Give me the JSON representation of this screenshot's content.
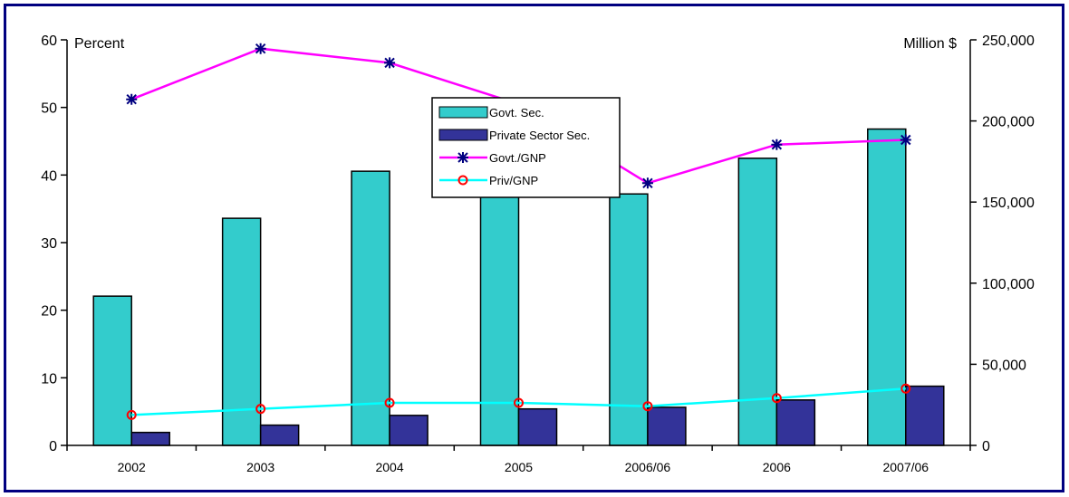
{
  "chart_data": {
    "type": "bar",
    "categories": [
      "2002",
      "2003",
      "2004",
      "2005",
      "2006/06",
      "2006",
      "2007/06"
    ],
    "series": [
      {
        "name": "Govt. Sec.",
        "kind": "bar",
        "axis": "right",
        "color": "#33CCCC",
        "values": [
          92000,
          140000,
          169000,
          156000,
          155000,
          177000,
          195000
        ]
      },
      {
        "name": "Private Sector Sec.",
        "kind": "bar",
        "axis": "right",
        "color": "#333399",
        "values": [
          8000,
          12500,
          18500,
          22500,
          23500,
          28000,
          36500
        ]
      },
      {
        "name": "Govt./GNP",
        "kind": "line",
        "axis": "left",
        "color": "#FF00FF",
        "marker": "star",
        "marker_color": "#000080",
        "values": [
          51.2,
          58.7,
          56.6,
          50.5,
          38.8,
          44.5,
          45.2
        ]
      },
      {
        "name": "Priv/GNP",
        "kind": "line",
        "axis": "left",
        "color": "#00FFFF",
        "marker": "circle",
        "marker_color": "#FF0000",
        "values": [
          4.5,
          5.4,
          6.3,
          6.3,
          5.8,
          7.0,
          8.4
        ]
      }
    ],
    "left_axis": {
      "label": "Percent",
      "min": 0,
      "max": 60,
      "ticks": [
        "0",
        "10",
        "20",
        "30",
        "40",
        "50",
        "60"
      ]
    },
    "right_axis": {
      "label": "Million $",
      "min": 0,
      "max": 250000,
      "ticks": [
        "0",
        "50,000",
        "100,000",
        "150,000",
        "200,000",
        "250,000"
      ]
    },
    "grid": false,
    "legend_position": "top-center"
  }
}
